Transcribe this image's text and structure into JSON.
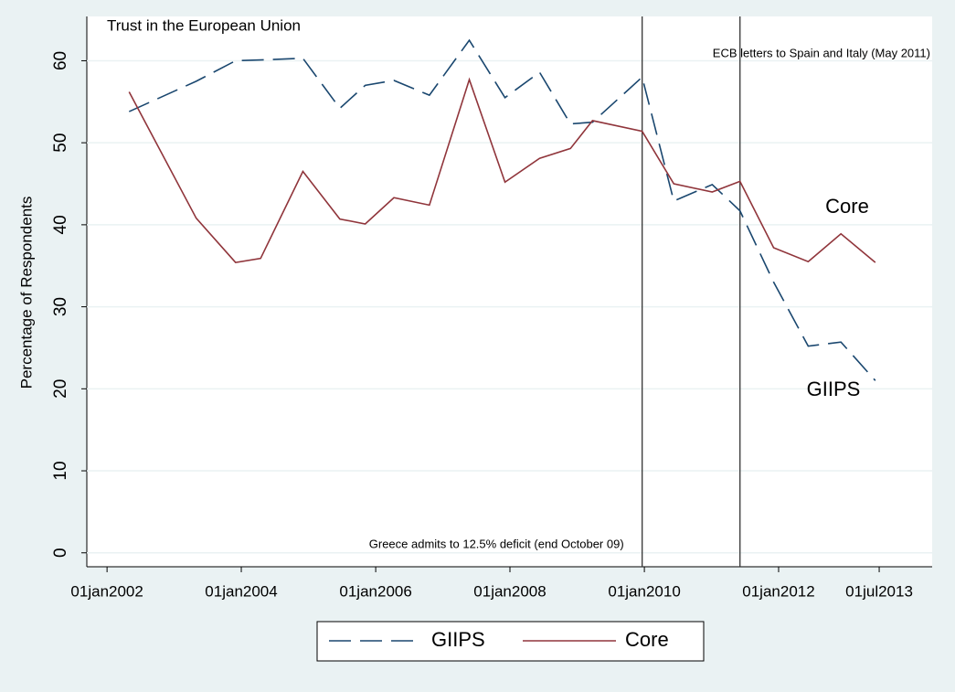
{
  "chart_data": {
    "type": "line",
    "title": "Trust in the European Union",
    "y_label": "Percentage of Respondents",
    "x": [
      "2002-05-01",
      "2003-05-01",
      "2003-12-01",
      "2004-04-15",
      "2004-12-01",
      "2005-06-20",
      "2005-11-05",
      "2006-04-10",
      "2006-10-20",
      "2007-05-25",
      "2007-12-05",
      "2008-06-10",
      "2008-11-25",
      "2009-03-25",
      "2009-12-20",
      "2010-06-10",
      "2011-01-05",
      "2011-06-05",
      "2011-12-05",
      "2012-06-10",
      "2012-12-05",
      "2013-06-10"
    ],
    "series": [
      {
        "name": "GIIPS",
        "color": "#1a476f",
        "dash": "24 10",
        "values": [
          53.8,
          57.5,
          60,
          60.1,
          60.3,
          54.2,
          57,
          57.6,
          55.8,
          62.5,
          55.5,
          58.6,
          52.3,
          52.5,
          58,
          42.9,
          44.9,
          41.7,
          33,
          25.2,
          25.7,
          21
        ]
      },
      {
        "name": "Core",
        "color": "#90353b",
        "dash": "",
        "values": [
          56.2,
          40.8,
          35.4,
          35.9,
          46.5,
          40.7,
          40.1,
          43.3,
          42.4,
          57.7,
          45.2,
          48.1,
          49.3,
          52.7,
          51.4,
          45,
          44,
          45.3,
          37.2,
          35.5,
          38.9,
          35.4
        ]
      }
    ],
    "xlim": [
      "2001-09-13",
      "2014-04-15"
    ],
    "xticks": [
      {
        "value": "2002-01-01",
        "label": "01jan2002"
      },
      {
        "value": "2004-01-01",
        "label": "01jan2004"
      },
      {
        "value": "2006-01-01",
        "label": "01jan2006"
      },
      {
        "value": "2008-01-01",
        "label": "01jan2008"
      },
      {
        "value": "2010-01-01",
        "label": "01jan2010"
      },
      {
        "value": "2012-01-01",
        "label": "01jan2012"
      },
      {
        "value": "2013-07-01",
        "label": "01jul2013"
      }
    ],
    "ylim": [
      -1.7,
      65.4
    ],
    "yticks": [
      0,
      10,
      20,
      30,
      40,
      50,
      60
    ],
    "grid": true,
    "legend": "bottom",
    "vlines": [
      {
        "x": "2009-12-20",
        "label": "Greece admits to 12.5% deficit (end October 09)"
      },
      {
        "x": "2011-06-05",
        "label": "ECB letters to Spain and Italy (May 2011)"
      }
    ]
  }
}
